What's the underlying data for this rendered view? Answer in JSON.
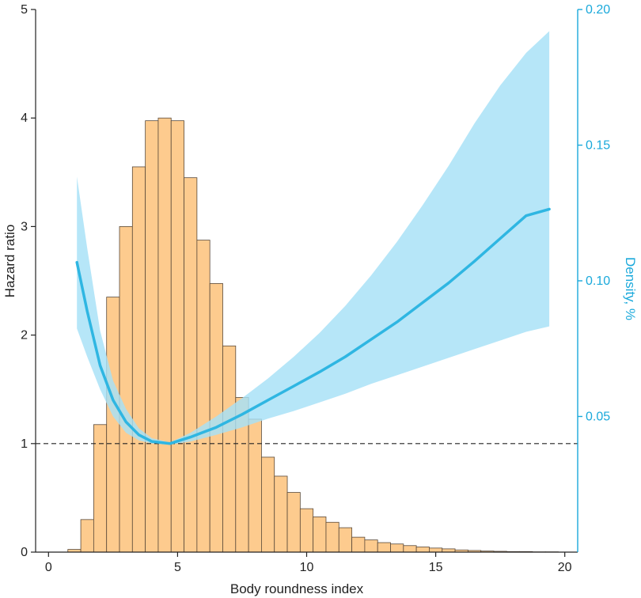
{
  "chart_data": {
    "type": "bar",
    "title": "",
    "xlabel": "Body  roundness index",
    "ylabel": "Hazard ratio",
    "y2label": "Density, %",
    "xlim": [
      -0.5,
      20.5
    ],
    "ylim": [
      0,
      5
    ],
    "y2lim": [
      0,
      0.2
    ],
    "x_ticks": [
      0,
      5,
      10,
      15,
      20
    ],
    "y_ticks": [
      0,
      1,
      2,
      3,
      4,
      5
    ],
    "y2_ticks": [
      "0.05",
      "0.10",
      "0.15",
      "0.20"
    ],
    "reference_line": {
      "y": 1,
      "style": "dashed"
    },
    "colors": {
      "histogram_fill": "#FDCB8E",
      "histogram_edge": "#5a4a3a",
      "curve": "#2FB6E2",
      "band": "#A6E1F7",
      "right_axis": "#1AA9DB",
      "reference": "#222222"
    },
    "histogram": {
      "name": "Density",
      "bin_width": 0.5,
      "bin_starts": [
        0.75,
        1.25,
        1.75,
        2.25,
        2.75,
        3.25,
        3.75,
        4.25,
        4.75,
        5.25,
        5.75,
        6.25,
        6.75,
        7.25,
        7.75,
        8.25,
        8.75,
        9.25,
        9.75,
        10.25,
        10.75,
        11.25,
        11.75,
        12.25,
        12.75,
        13.25,
        13.75,
        14.25,
        14.75,
        15.25,
        15.75,
        16.25,
        16.75,
        17.25,
        17.75,
        18.25,
        18.75,
        19.25
      ],
      "values": [
        0.001,
        0.012,
        0.047,
        0.094,
        0.12,
        0.142,
        0.159,
        0.16,
        0.159,
        0.138,
        0.115,
        0.099,
        0.076,
        0.057,
        0.049,
        0.035,
        0.028,
        0.022,
        0.016,
        0.013,
        0.011,
        0.009,
        0.0055,
        0.0045,
        0.0035,
        0.003,
        0.0024,
        0.0019,
        0.0015,
        0.0012,
        0.0008,
        0.0006,
        0.0004,
        0.0003,
        0.0002,
        0.0002,
        0.0001,
        0.0001
      ]
    },
    "series": [
      {
        "type": "line",
        "x": [
          1.1,
          1.5,
          2,
          2.5,
          3,
          3.5,
          4,
          4.7,
          5.5,
          6.5,
          7.5,
          8.5,
          9.5,
          10.5,
          11.5,
          12.5,
          13.5,
          14.5,
          15.5,
          16.5,
          17.5,
          18.5,
          19.4
        ],
        "y": [
          2.67,
          2.22,
          1.72,
          1.4,
          1.2,
          1.08,
          1.02,
          1,
          1.06,
          1.15,
          1.27,
          1.4,
          1.53,
          1.66,
          1.8,
          1.96,
          2.12,
          2.3,
          2.48,
          2.68,
          2.89,
          3.1,
          3.16
        ],
        "lower": [
          2.06,
          1.8,
          1.5,
          1.25,
          1.1,
          1.03,
          1,
          0.99,
          1.02,
          1.08,
          1.15,
          1.23,
          1.3,
          1.38,
          1.46,
          1.55,
          1.63,
          1.71,
          1.79,
          1.87,
          1.95,
          2.03,
          2.08
        ],
        "upper": [
          3.46,
          2.8,
          2.04,
          1.58,
          1.32,
          1.14,
          1.05,
          1.01,
          1.1,
          1.25,
          1.42,
          1.6,
          1.8,
          2.02,
          2.27,
          2.55,
          2.86,
          3.2,
          3.56,
          3.95,
          4.3,
          4.6,
          4.8
        ]
      }
    ]
  }
}
